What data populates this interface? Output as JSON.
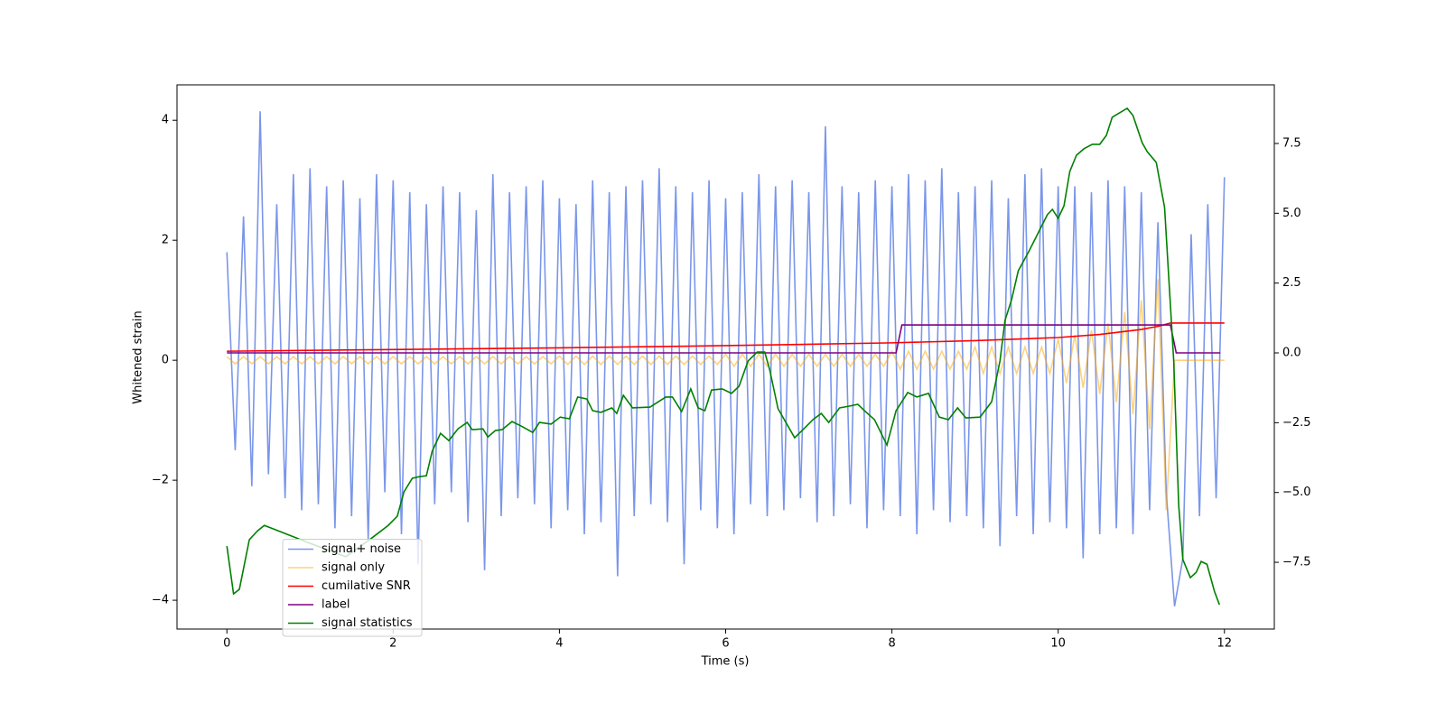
{
  "chart_data": {
    "type": "line",
    "xlabel": "Time (s)",
    "ylabel": "Whitened strain",
    "xlim": [
      -0.6,
      12.6
    ],
    "ylim": [
      -4.48,
      4.59
    ],
    "y2lim": [
      -9.89,
      9.6
    ],
    "xticks": [
      0,
      2,
      4,
      6,
      8,
      10,
      12
    ],
    "yticks": [
      {
        "value": -4,
        "label": "−4"
      },
      {
        "value": -2,
        "label": "−2"
      },
      0,
      2,
      4
    ],
    "y2ticks": [
      {
        "value": -7.5,
        "label": "−7.5"
      },
      {
        "value": -5,
        "label": "−5.0"
      },
      {
        "value": -2.5,
        "label": "−2.5"
      },
      {
        "value": 0,
        "label": "0.0"
      },
      2.5,
      {
        "value": 5,
        "label": "5.0"
      },
      7.5
    ],
    "legend": "lower left",
    "x": [
      0,
      0.1,
      0.2,
      0.3,
      0.4,
      0.5,
      0.6,
      0.7,
      0.8,
      0.9,
      1,
      1.1,
      1.2,
      1.3,
      1.4,
      1.5,
      1.6,
      1.7,
      1.8,
      1.9,
      2,
      2.1,
      2.2,
      2.3,
      2.4,
      2.5,
      2.6,
      2.7,
      2.8,
      2.9,
      3,
      3.1,
      3.2,
      3.3,
      3.4,
      3.5,
      3.6,
      3.7,
      3.8,
      3.9,
      4,
      4.1,
      4.2,
      4.3,
      4.4,
      4.5,
      4.6,
      4.7,
      4.8,
      4.9,
      5,
      5.1,
      5.2,
      5.3,
      5.4,
      5.5,
      5.6,
      5.7,
      5.8,
      5.9,
      6,
      6.1,
      6.2,
      6.3,
      6.4,
      6.5,
      6.6,
      6.7,
      6.8,
      6.9,
      7,
      7.1,
      7.2,
      7.3,
      7.4,
      7.5,
      7.6,
      7.7,
      7.8,
      7.9,
      8,
      8.1,
      8.2,
      8.3,
      8.4,
      8.5,
      8.6,
      8.7,
      8.8,
      8.9,
      9,
      9.1,
      9.2,
      9.3,
      9.4,
      9.5,
      9.6,
      9.7,
      9.8,
      9.9,
      10,
      10.1,
      10.2,
      10.3,
      10.4,
      10.5,
      10.6,
      10.7,
      10.8,
      10.9,
      11,
      11.1,
      11.2,
      11.3,
      11.4,
      11.5,
      11.6,
      11.7,
      11.8,
      11.9,
      12
    ],
    "series": [
      {
        "name": "signal+ noise",
        "color": "#4169e1",
        "opacity": 0.7,
        "axis": "y",
        "values": [
          1.8,
          -1.5,
          2.4,
          -2.1,
          4.15,
          -1.9,
          2.6,
          -2.3,
          3.1,
          -2.5,
          3.2,
          -2.4,
          2.9,
          -2.8,
          3.0,
          -2.6,
          2.7,
          -3.0,
          3.1,
          -2.2,
          3.0,
          -2.9,
          2.8,
          -3.4,
          2.6,
          -2.4,
          2.9,
          -2.2,
          2.8,
          -2.7,
          2.5,
          -3.5,
          3.1,
          -2.6,
          2.8,
          -2.3,
          2.9,
          -2.4,
          3.0,
          -2.8,
          2.7,
          -2.5,
          2.6,
          -2.9,
          3.0,
          -2.7,
          2.8,
          -3.6,
          2.9,
          -2.6,
          3.0,
          -2.4,
          3.2,
          -2.7,
          2.9,
          -3.4,
          2.8,
          -2.5,
          3.0,
          -2.8,
          2.7,
          -2.9,
          2.8,
          -2.4,
          3.1,
          -2.6,
          2.9,
          -2.5,
          3.0,
          -2.3,
          2.8,
          -2.7,
          3.9,
          -2.6,
          2.9,
          -2.4,
          2.8,
          -2.8,
          3.0,
          -2.5,
          2.9,
          -2.6,
          3.1,
          -2.9,
          3.0,
          -2.5,
          3.2,
          -2.7,
          2.8,
          -2.6,
          2.9,
          -2.8,
          3.0,
          -3.1,
          2.7,
          -2.6,
          3.1,
          -2.9,
          3.2,
          -2.7,
          2.9,
          -2.8,
          2.9,
          -3.3,
          2.8,
          -2.9,
          3.0,
          -2.8,
          2.9,
          -2.9,
          2.8,
          -2.5,
          2.3,
          -2.2,
          -4.1,
          -3.3,
          2.1,
          -2.6,
          2.6,
          -2.3,
          3.05
        ]
      },
      {
        "name": "signal only",
        "color": "#ffa500",
        "opacity": 0.5,
        "axis": "y",
        "values": [
          0.06,
          -0.06,
          0.06,
          -0.06,
          0.06,
          -0.06,
          0.06,
          -0.06,
          0.06,
          -0.06,
          0.06,
          -0.06,
          0.06,
          -0.06,
          0.06,
          -0.06,
          0.06,
          -0.06,
          0.06,
          -0.06,
          0.06,
          -0.06,
          0.06,
          -0.06,
          0.06,
          -0.06,
          0.06,
          -0.06,
          0.06,
          -0.06,
          0.06,
          -0.06,
          0.06,
          -0.06,
          0.06,
          -0.06,
          0.06,
          -0.06,
          0.06,
          -0.06,
          0.07,
          -0.07,
          0.07,
          -0.07,
          0.07,
          -0.07,
          0.07,
          -0.07,
          0.07,
          -0.07,
          0.07,
          -0.07,
          0.07,
          -0.07,
          0.07,
          -0.07,
          0.07,
          -0.07,
          0.07,
          -0.07,
          0.1,
          -0.1,
          0.1,
          -0.1,
          0.1,
          -0.1,
          0.1,
          -0.1,
          0.1,
          -0.1,
          0.1,
          -0.1,
          0.1,
          -0.1,
          0.1,
          -0.1,
          0.1,
          -0.1,
          0.1,
          -0.1,
          0.15,
          -0.15,
          0.15,
          -0.15,
          0.15,
          -0.15,
          0.15,
          -0.15,
          0.15,
          -0.15,
          0.22,
          -0.22,
          0.22,
          -0.22,
          0.22,
          -0.22,
          0.22,
          -0.22,
          0.22,
          -0.22,
          0.35,
          -0.38,
          0.42,
          -0.46,
          0.5,
          -0.56,
          0.62,
          -0.7,
          0.8,
          -0.9,
          1.0,
          -1.15,
          1.35,
          -2.5,
          0,
          0,
          0,
          0,
          0,
          0,
          0
        ]
      },
      {
        "name": "cumilative SNR",
        "color": "#ff0000",
        "opacity": 1,
        "axis": "y2",
        "x": [
          0,
          2,
          4,
          6,
          8,
          9,
          10,
          10.5,
          11,
          11.2,
          11.35,
          12
        ],
        "values": [
          0.06,
          0.12,
          0.18,
          0.26,
          0.36,
          0.44,
          0.55,
          0.66,
          0.84,
          0.95,
          1.07,
          1.07
        ]
      },
      {
        "name": "label",
        "color": "#800080",
        "opacity": 1,
        "axis": "y2",
        "x": [
          0,
          8.05,
          8.12,
          11.35,
          11.42,
          11.95
        ],
        "values": [
          0,
          0,
          1,
          1,
          0,
          0
        ]
      },
      {
        "name": "signal statistics",
        "color": "#008000",
        "opacity": 1,
        "axis": "y2",
        "x": [
          0,
          0.08,
          0.15,
          0.27,
          0.37,
          0.45,
          0.53,
          1.0,
          1.43,
          1.73,
          1.94,
          2.05,
          2.13,
          2.23,
          2.32,
          2.4,
          2.47,
          2.57,
          2.67,
          2.78,
          2.89,
          2.95,
          3.08,
          3.14,
          3.23,
          3.31,
          3.43,
          3.54,
          3.68,
          3.76,
          3.9,
          4.01,
          4.12,
          4.22,
          4.33,
          4.4,
          4.5,
          4.63,
          4.69,
          4.77,
          4.88,
          5.09,
          5.28,
          5.36,
          5.47,
          5.58,
          5.67,
          5.75,
          5.83,
          5.96,
          6.07,
          6.16,
          6.27,
          6.38,
          6.47,
          6.53,
          6.63,
          6.83,
          6.94,
          7.05,
          7.15,
          7.24,
          7.37,
          7.48,
          7.59,
          7.67,
          7.79,
          7.94,
          8.05,
          8.19,
          8.3,
          8.44,
          8.57,
          8.68,
          8.79,
          8.89,
          9.06,
          9.2,
          9.3,
          9.36,
          9.44,
          9.52,
          9.65,
          9.76,
          9.87,
          9.93,
          10.0,
          10.07,
          10.14,
          10.22,
          10.31,
          10.41,
          10.5,
          10.58,
          10.65,
          10.74,
          10.83,
          10.9,
          11.01,
          11.07,
          11.18,
          11.28,
          11.39,
          11.45,
          11.5,
          11.59,
          11.66,
          11.72,
          11.79,
          11.88,
          11.94
        ],
        "values": [
          -6.92,
          -8.63,
          -8.47,
          -6.69,
          -6.37,
          -6.18,
          -6.27,
          -6.82,
          -7.3,
          -6.66,
          -6.18,
          -5.85,
          -4.98,
          -4.49,
          -4.43,
          -4.4,
          -3.52,
          -2.88,
          -3.14,
          -2.72,
          -2.49,
          -2.75,
          -2.72,
          -3.01,
          -2.78,
          -2.75,
          -2.46,
          -2.62,
          -2.85,
          -2.49,
          -2.55,
          -2.3,
          -2.36,
          -1.58,
          -1.65,
          -2.07,
          -2.13,
          -1.97,
          -2.17,
          -1.52,
          -1.97,
          -1.94,
          -1.58,
          -1.58,
          -2.1,
          -1.29,
          -1.97,
          -2.07,
          -1.33,
          -1.29,
          -1.45,
          -1.2,
          -0.29,
          0.03,
          0.03,
          -0.61,
          -2.0,
          -3.04,
          -2.72,
          -2.39,
          -2.17,
          -2.49,
          -1.97,
          -1.91,
          -1.84,
          -2.07,
          -2.39,
          -3.3,
          -2.07,
          -1.42,
          -1.58,
          -1.45,
          -2.3,
          -2.39,
          -1.97,
          -2.33,
          -2.3,
          -1.75,
          -0.29,
          1.16,
          1.91,
          2.94,
          3.65,
          4.3,
          4.95,
          5.14,
          4.82,
          5.27,
          6.5,
          7.08,
          7.31,
          7.47,
          7.47,
          7.79,
          8.44,
          8.6,
          8.76,
          8.5,
          7.53,
          7.21,
          6.82,
          5.21,
          -0.29,
          -5.46,
          -7.4,
          -8.05,
          -7.86,
          -7.47,
          -7.57,
          -8.54,
          -9.02
        ]
      }
    ]
  }
}
